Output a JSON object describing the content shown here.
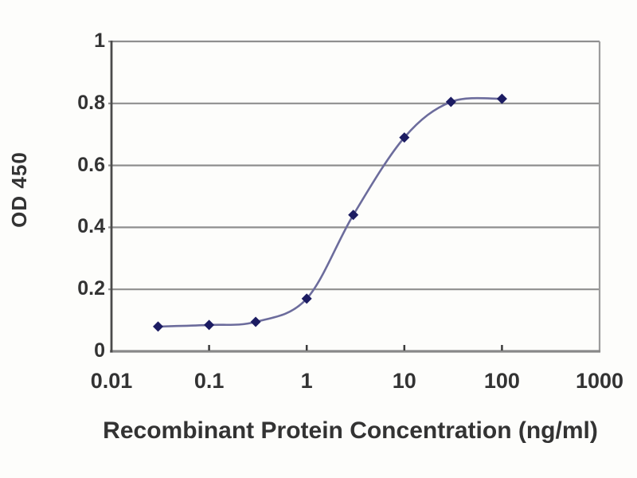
{
  "chart_data": {
    "type": "line",
    "title": "",
    "xlabel": "Recombinant Protein Concentration (ng/ml)",
    "ylabel": "OD 450",
    "x_scale": "log",
    "xlim": [
      0.01,
      1000
    ],
    "ylim": [
      0,
      1
    ],
    "x_ticks": [
      0.01,
      0.1,
      1,
      10,
      100,
      1000
    ],
    "x_tick_labels": [
      "0.01",
      "0.1",
      "1",
      "10",
      "100",
      "1000"
    ],
    "y_ticks": [
      0,
      0.2,
      0.4,
      0.6,
      0.8,
      1
    ],
    "y_tick_labels": [
      "0",
      "0.2",
      "0.4",
      "0.6",
      "0.8",
      "1"
    ],
    "grid": "horizontal",
    "legend": "none",
    "series": [
      {
        "name": "OD 450",
        "marker": "diamond",
        "x": [
          0.03,
          0.1,
          0.3,
          1,
          3,
          10,
          30,
          100
        ],
        "y": [
          0.08,
          0.085,
          0.095,
          0.17,
          0.44,
          0.69,
          0.805,
          0.815
        ]
      }
    ],
    "colors": {
      "line": "#6c6c9c",
      "marker": "#1c1c62",
      "grid": "#8f8f8f",
      "y_axis": "#4b4b4b",
      "x_axis": "#888888",
      "right_border": "#9c9c9c",
      "tick_mark": "#3c3c3c",
      "text": "#333333",
      "background": "#fdfdfb"
    }
  }
}
